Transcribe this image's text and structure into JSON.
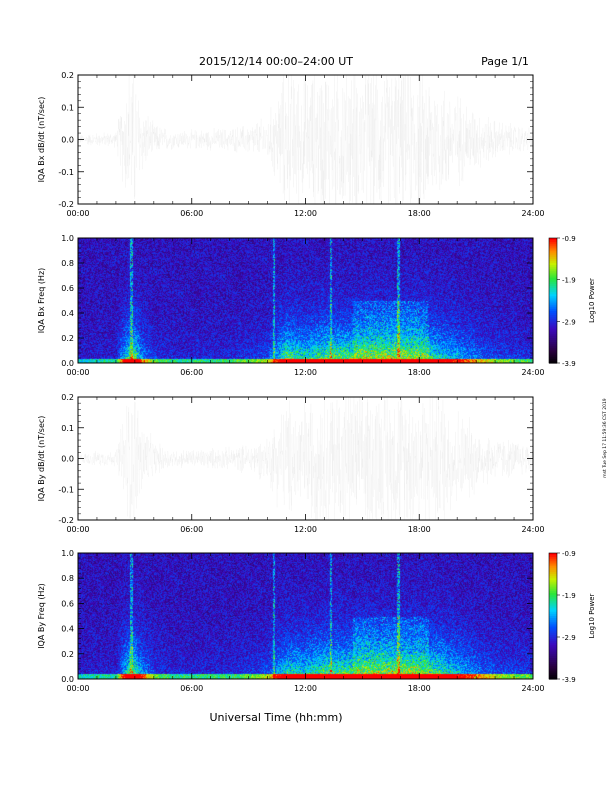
{
  "header": {
    "title": "2015/12/14  00:00–24:00 UT",
    "page": "Page 1/1"
  },
  "footer": {
    "xlabel": "Universal Time (hh:mm)",
    "side_note": "mst Tue Sep 17 11:59:36 CST 2019"
  },
  "colorbar": {
    "label": "Log10 Power",
    "ticks": [
      "-0.9",
      "-1.9",
      "-2.9",
      "-3.9"
    ],
    "range": [
      -3.9,
      -0.9
    ]
  },
  "xticks": [
    "00:00",
    "06:00",
    "12:00",
    "18:00",
    "24:00"
  ],
  "chart_data": [
    {
      "type": "line",
      "ylabel": "IQA Bx dB/dt (nT/sec)",
      "xlim": [
        0,
        24
      ],
      "ylim": [
        -0.2,
        0.2
      ],
      "yticks": [
        "0.2",
        "0.1",
        "0.0",
        "-0.1",
        "-0.2"
      ],
      "x_unit": "hours UT",
      "envelope_hours": [
        0,
        1,
        2,
        2.7,
        3,
        3.3,
        4,
        5,
        6,
        7,
        8,
        9,
        10,
        10.5,
        11,
        12,
        13,
        14,
        15,
        16,
        17,
        18,
        19,
        20,
        21,
        22,
        23,
        24
      ],
      "envelope_amp": [
        0.012,
        0.018,
        0.02,
        0.2,
        0.2,
        0.1,
        0.04,
        0.025,
        0.025,
        0.028,
        0.03,
        0.04,
        0.06,
        0.12,
        0.2,
        0.16,
        0.2,
        0.2,
        0.2,
        0.2,
        0.2,
        0.2,
        0.16,
        0.12,
        0.08,
        0.05,
        0.04,
        0.03
      ]
    },
    {
      "type": "heatmap",
      "ylabel": "IQA Bx Freq (Hz)",
      "xlim": [
        0,
        24
      ],
      "ylim": [
        0.0,
        1.0
      ],
      "yticks": [
        "1.0",
        "0.8",
        "0.6",
        "0.4",
        "0.2",
        "0.0"
      ],
      "value_label": "Log10 Power",
      "zlim": [
        -3.9,
        -0.9
      ]
    },
    {
      "type": "line",
      "ylabel": "IQA By dB/dt (nT/sec)",
      "xlim": [
        0,
        24
      ],
      "ylim": [
        -0.2,
        0.2
      ],
      "yticks": [
        "0.2",
        "0.1",
        "0.0",
        "-0.1",
        "-0.2"
      ],
      "x_unit": "hours UT",
      "envelope_hours": [
        0,
        1,
        2,
        2.7,
        3,
        3.3,
        4,
        5,
        6,
        7,
        8,
        9,
        10,
        10.5,
        11,
        12,
        13,
        14,
        15,
        16,
        17,
        18,
        19,
        20,
        21,
        22,
        23,
        24
      ],
      "envelope_amp": [
        0.012,
        0.02,
        0.02,
        0.2,
        0.2,
        0.12,
        0.045,
        0.025,
        0.025,
        0.028,
        0.03,
        0.04,
        0.06,
        0.12,
        0.16,
        0.16,
        0.2,
        0.2,
        0.2,
        0.2,
        0.2,
        0.2,
        0.2,
        0.14,
        0.09,
        0.06,
        0.05,
        0.04
      ]
    },
    {
      "type": "heatmap",
      "ylabel": "IQA By Freq (Hz)",
      "xlim": [
        0,
        24
      ],
      "ylim": [
        0.0,
        1.0
      ],
      "yticks": [
        "1.0",
        "0.8",
        "0.6",
        "0.4",
        "0.2",
        "0.0"
      ],
      "value_label": "Log10 Power",
      "zlim": [
        -3.9,
        -0.9
      ]
    }
  ]
}
